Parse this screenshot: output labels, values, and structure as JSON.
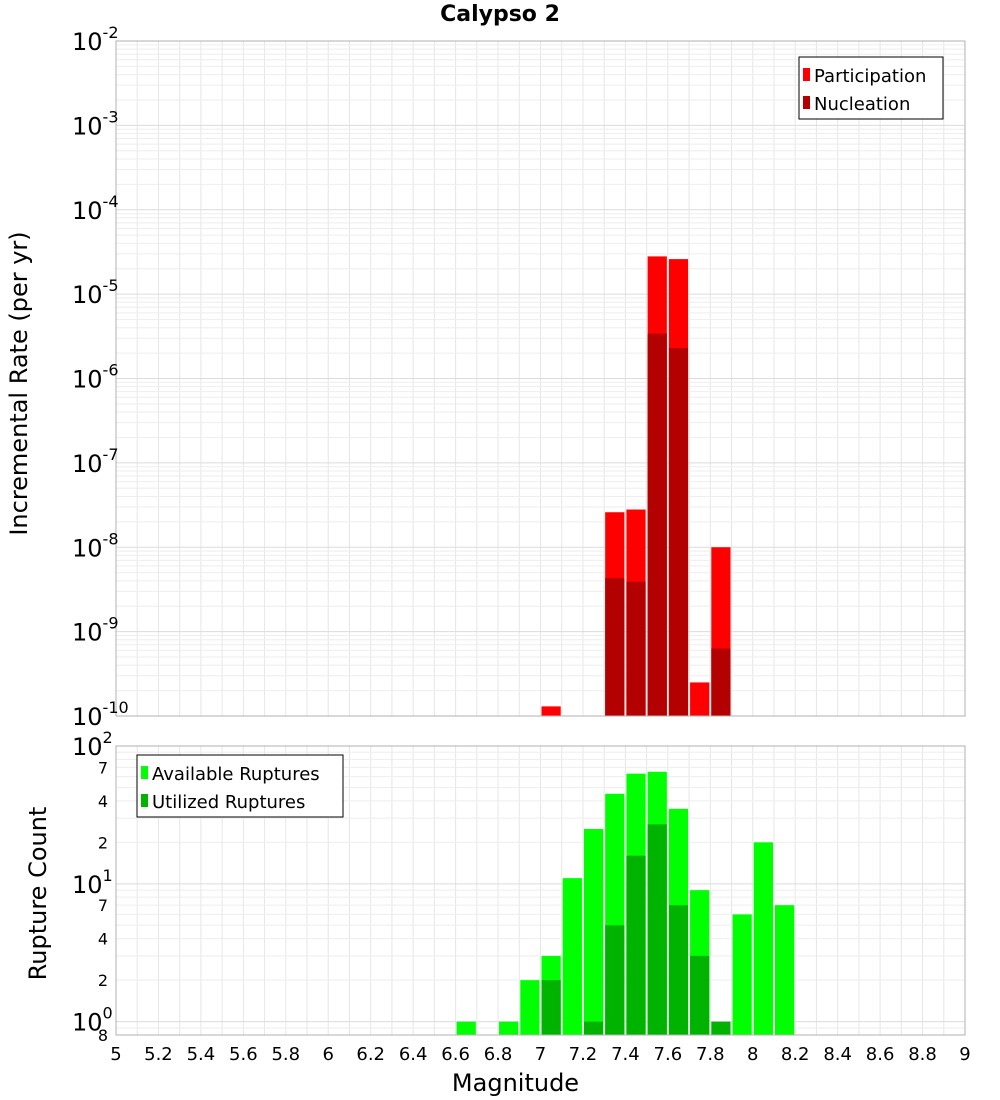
{
  "title": "Calypso 2",
  "colors": {
    "participation": "#ff0000",
    "nucleation": "#b30000",
    "available": "#00ff00",
    "utilized": "#00b300"
  },
  "chart_data": [
    {
      "type": "bar",
      "title": "Calypso 2",
      "ylabel": "Incremental Rate (per yr)",
      "xlabel": "Magnitude",
      "yscale": "log",
      "ylim": [
        1e-10,
        0.01
      ],
      "xlim": [
        5,
        9
      ],
      "x_tick_labels": [
        "5",
        "5.2",
        "5.4",
        "5.6",
        "5.8",
        "6",
        "6.2",
        "6.4",
        "6.6",
        "6.8",
        "7",
        "7.2",
        "7.4",
        "7.6",
        "7.8",
        "8",
        "8.2",
        "8.4",
        "8.6",
        "8.8",
        "9"
      ],
      "y_tick_labels": [
        {
          "base": "10",
          "exp": "-2"
        },
        {
          "base": "10",
          "exp": "-3"
        },
        {
          "base": "10",
          "exp": "-4"
        },
        {
          "base": "10",
          "exp": "-5"
        },
        {
          "base": "10",
          "exp": "-6"
        },
        {
          "base": "10",
          "exp": "-7"
        },
        {
          "base": "10",
          "exp": "-8"
        },
        {
          "base": "10",
          "exp": "-9"
        },
        {
          "base": "10",
          "exp": "-10"
        }
      ],
      "legend": {
        "placement": "top-right",
        "entries": [
          "Participation",
          "Nucleation"
        ]
      },
      "grid": true,
      "series": [
        {
          "name": "Participation",
          "x": [
            7.05,
            7.35,
            7.45,
            7.55,
            7.65,
            7.75,
            7.85
          ],
          "values": [
            1.3e-10,
            2.6e-08,
            2.8e-08,
            2.8e-05,
            2.6e-05,
            2.5e-10,
            1e-08
          ]
        },
        {
          "name": "Nucleation",
          "x": [
            7.35,
            7.45,
            7.55,
            7.65,
            7.85
          ],
          "values": [
            4.3e-09,
            3.9e-09,
            3.4e-06,
            2.3e-06,
            6.3e-10
          ]
        }
      ]
    },
    {
      "type": "bar",
      "ylabel": "Rupture Count",
      "xlabel": "Magnitude",
      "yscale": "log",
      "ylim": [
        0.8,
        100
      ],
      "xlim": [
        5,
        9
      ],
      "y_tick_labels": {
        "major": [
          {
            "base": "10",
            "exp": "2"
          },
          {
            "base": "10",
            "exp": "1"
          },
          {
            "base": "10",
            "exp": "0"
          }
        ],
        "minor": [
          "7",
          "4",
          "2",
          "7",
          "4",
          "2",
          "8"
        ]
      },
      "legend": {
        "placement": "top-left",
        "entries": [
          "Available Ruptures",
          "Utilized Ruptures"
        ]
      },
      "grid": true,
      "series": [
        {
          "name": "Available Ruptures",
          "x": [
            6.65,
            6.85,
            6.95,
            7.05,
            7.15,
            7.25,
            7.35,
            7.45,
            7.55,
            7.65,
            7.75,
            7.95,
            8.05,
            8.15
          ],
          "values": [
            1,
            1,
            2,
            3,
            11,
            25,
            45,
            63,
            65,
            35,
            9,
            6,
            20,
            7
          ]
        },
        {
          "name": "Utilized Ruptures",
          "x": [
            7.05,
            7.25,
            7.35,
            7.45,
            7.55,
            7.65,
            7.75,
            7.85
          ],
          "values": [
            2,
            1,
            5,
            16,
            27,
            7,
            3,
            1
          ]
        }
      ]
    }
  ]
}
